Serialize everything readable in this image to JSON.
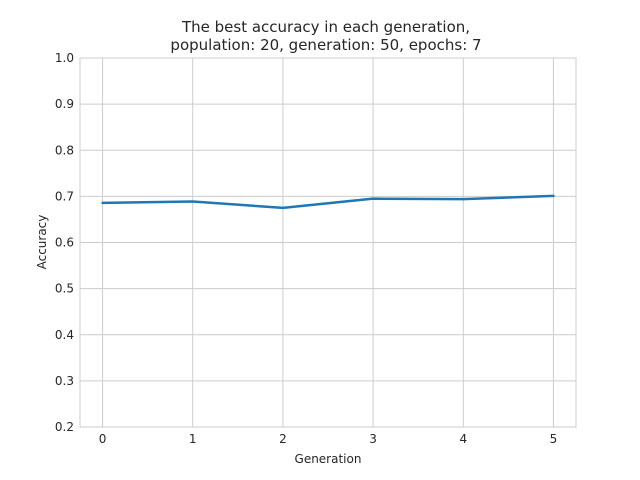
{
  "chart_data": {
    "type": "line",
    "title_line1": "The best accuracy in each generation,",
    "title_line2": "population: 20, generation: 50, epochs: 7",
    "xlabel": "Generation",
    "ylabel": "Accuracy",
    "x": [
      0,
      1,
      2,
      3,
      4,
      5
    ],
    "series": [
      {
        "values": [
          0.686,
          0.689,
          0.675,
          0.695,
          0.694,
          0.701
        ],
        "color": "#1f77b4"
      }
    ],
    "xlim": [
      -0.25,
      5.25
    ],
    "ylim": [
      0.2,
      1.0
    ],
    "xticks": [
      "0",
      "1",
      "2",
      "3",
      "4",
      "5"
    ],
    "yticks": [
      "0.2",
      "0.3",
      "0.4",
      "0.5",
      "0.6",
      "0.7",
      "0.8",
      "0.9",
      "1.0"
    ],
    "grid": true,
    "legend": "none"
  }
}
